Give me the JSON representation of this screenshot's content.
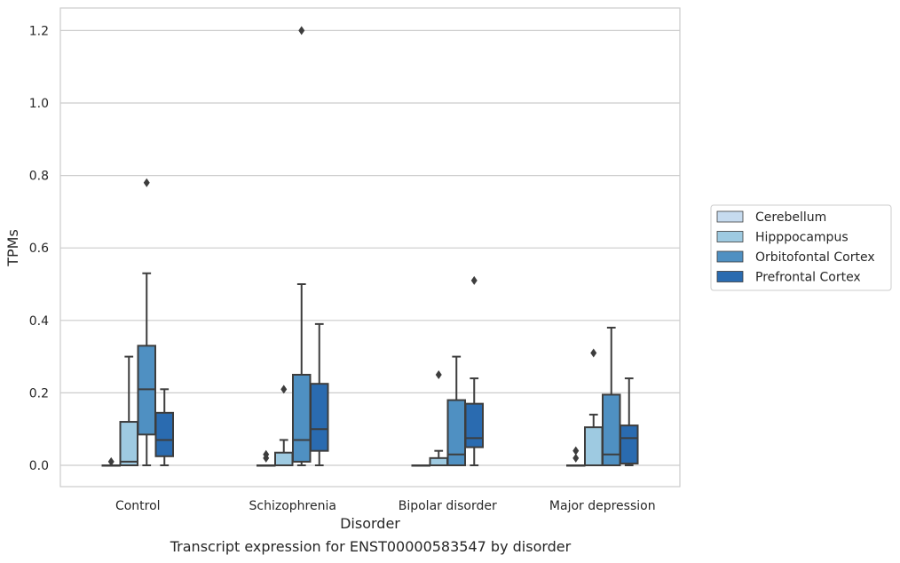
{
  "caption": "Transcript expression for ENST00000583547 by disorder",
  "chart_data": {
    "type": "box",
    "xlabel": "Disorder",
    "ylabel": "TPMs",
    "categories": [
      "Control",
      "Schizophrenia",
      "Bipolar disorder",
      "Major depression"
    ],
    "yticks": [
      "0.0",
      "0.2",
      "0.4",
      "0.6",
      "0.8",
      "1.0",
      "1.2"
    ],
    "ytick_values": [
      0,
      0.2,
      0.4,
      0.6,
      0.8,
      1.0,
      1.2
    ],
    "ylim": [
      -0.06,
      1.26
    ],
    "grid": "horizontal",
    "legend_position": "center-right",
    "series": [
      {
        "name": "Cerebellum",
        "color": "#c6dbef",
        "boxes": [
          {
            "category": "Control",
            "min": 0,
            "q1": 0,
            "median": 0,
            "q3": 0,
            "max": 0,
            "outliers": [
              0.01
            ]
          },
          {
            "category": "Schizophrenia",
            "min": 0,
            "q1": 0,
            "median": 0,
            "q3": 0,
            "max": 0,
            "outliers": [
              0.02,
              0.03
            ]
          },
          {
            "category": "Bipolar disorder",
            "min": 0,
            "q1": 0,
            "median": 0,
            "q3": 0,
            "max": 0,
            "outliers": []
          },
          {
            "category": "Major depression",
            "min": 0,
            "q1": 0,
            "median": 0,
            "q3": 0,
            "max": 0,
            "outliers": [
              0.02,
              0.04
            ]
          }
        ]
      },
      {
        "name": "Hipppocampus",
        "color": "#9ecae1",
        "boxes": [
          {
            "category": "Control",
            "min": 0,
            "q1": 0,
            "median": 0.01,
            "q3": 0.12,
            "max": 0.3,
            "outliers": []
          },
          {
            "category": "Schizophrenia",
            "min": 0,
            "q1": 0,
            "median": 0,
            "q3": 0.035,
            "max": 0.07,
            "outliers": [
              0.21
            ]
          },
          {
            "category": "Bipolar disorder",
            "min": 0,
            "q1": 0,
            "median": 0,
            "q3": 0.02,
            "max": 0.04,
            "outliers": [
              0.25
            ]
          },
          {
            "category": "Major depression",
            "min": 0,
            "q1": 0,
            "median": 0,
            "q3": 0.105,
            "max": 0.14,
            "outliers": [
              0.31
            ]
          }
        ]
      },
      {
        "name": "Orbitofontal Cortex",
        "color": "#4f90c2",
        "boxes": [
          {
            "category": "Control",
            "min": 0,
            "q1": 0.085,
            "median": 0.21,
            "q3": 0.33,
            "max": 0.53,
            "outliers": [
              0.78
            ]
          },
          {
            "category": "Schizophrenia",
            "min": 0,
            "q1": 0.01,
            "median": 0.07,
            "q3": 0.25,
            "max": 0.5,
            "outliers": [
              1.2
            ]
          },
          {
            "category": "Bipolar disorder",
            "min": 0,
            "q1": 0,
            "median": 0.03,
            "q3": 0.18,
            "max": 0.3,
            "outliers": []
          },
          {
            "category": "Major depression",
            "min": 0,
            "q1": 0,
            "median": 0.03,
            "q3": 0.195,
            "max": 0.38,
            "outliers": []
          }
        ]
      },
      {
        "name": "Prefrontal Cortex",
        "color": "#2a6bb0",
        "boxes": [
          {
            "category": "Control",
            "min": 0,
            "q1": 0.025,
            "median": 0.07,
            "q3": 0.145,
            "max": 0.21,
            "outliers": []
          },
          {
            "category": "Schizophrenia",
            "min": 0,
            "q1": 0.04,
            "median": 0.1,
            "q3": 0.225,
            "max": 0.39,
            "outliers": []
          },
          {
            "category": "Bipolar disorder",
            "min": 0,
            "q1": 0.05,
            "median": 0.075,
            "q3": 0.17,
            "max": 0.24,
            "outliers": [
              0.51
            ]
          },
          {
            "category": "Major depression",
            "min": 0,
            "q1": 0.005,
            "median": 0.075,
            "q3": 0.11,
            "max": 0.24,
            "outliers": []
          }
        ]
      }
    ]
  }
}
